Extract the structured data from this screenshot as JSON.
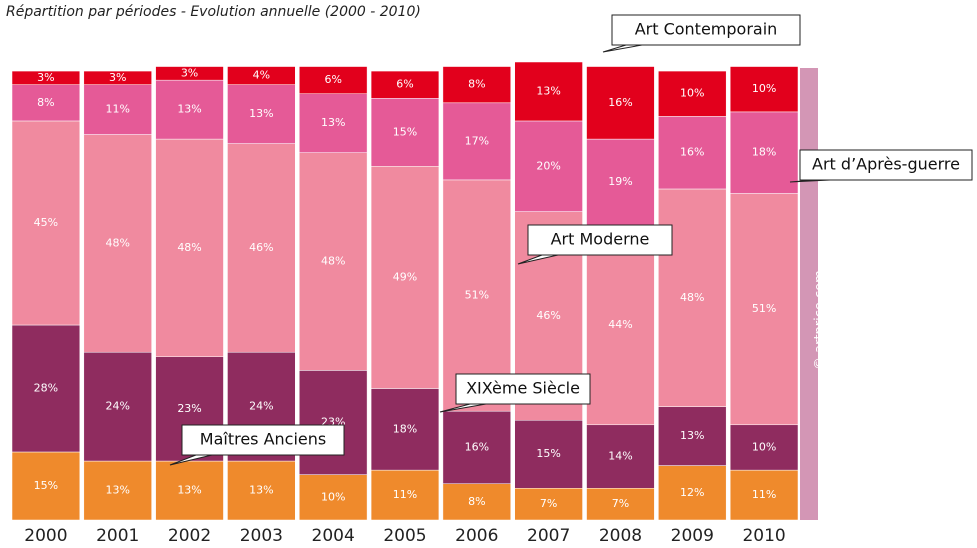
{
  "chart_data": {
    "type": "bar",
    "stacked": true,
    "title": "Répartition par périodes - Evolution annuelle (2000 - 2010)",
    "watermark": "© artprice.com",
    "categories": [
      "2000",
      "2001",
      "2002",
      "2003",
      "2004",
      "2005",
      "2006",
      "2007",
      "2008",
      "2009",
      "2010"
    ],
    "series": [
      {
        "name": "Maîtres Anciens",
        "color": "#ef8a2c",
        "values": [
          15,
          13,
          13,
          13,
          10,
          11,
          8,
          7,
          7,
          12,
          11
        ],
        "value_labels": [
          "15%",
          "13%",
          "13%",
          "13%",
          "10%",
          "11%",
          "8%",
          "7%",
          "7%",
          "12%",
          "11%"
        ]
      },
      {
        "name": "XIXème Siècle",
        "color": "#8f2c5f",
        "values": [
          28,
          24,
          23,
          24,
          23,
          18,
          16,
          15,
          14,
          13,
          10
        ],
        "value_labels": [
          "28%",
          "24%",
          "23%",
          "24%",
          "23%",
          "18%",
          "16%",
          "15%",
          "14%",
          "13%",
          "10%"
        ]
      },
      {
        "name": "Art Moderne",
        "color": "#f08a9f",
        "values": [
          45,
          48,
          48,
          46,
          48,
          49,
          51,
          46,
          44,
          48,
          51
        ],
        "value_labels": [
          "45%",
          "48%",
          "48%",
          "46%",
          "48%",
          "49%",
          "51%",
          "46%",
          "44%",
          "48%",
          "51%"
        ]
      },
      {
        "name": "Art d’Après-guerre",
        "color": "#e55a97",
        "values": [
          8,
          11,
          13,
          13,
          13,
          15,
          17,
          20,
          19,
          16,
          18
        ],
        "value_labels": [
          "8%",
          "11%",
          "13%",
          "13%",
          "13%",
          "15%",
          "17%",
          "20%",
          "19%",
          "16%",
          "18%"
        ]
      },
      {
        "name": "Art Contemporain",
        "color": "#e2001c",
        "values": [
          3,
          3,
          3,
          4,
          6,
          6,
          8,
          13,
          16,
          10,
          10
        ],
        "value_labels": [
          "3%",
          "3%",
          "3%",
          "4%",
          "6%",
          "6%",
          "8%",
          "13%",
          "16%",
          "10%",
          "10%"
        ]
      }
    ]
  }
}
